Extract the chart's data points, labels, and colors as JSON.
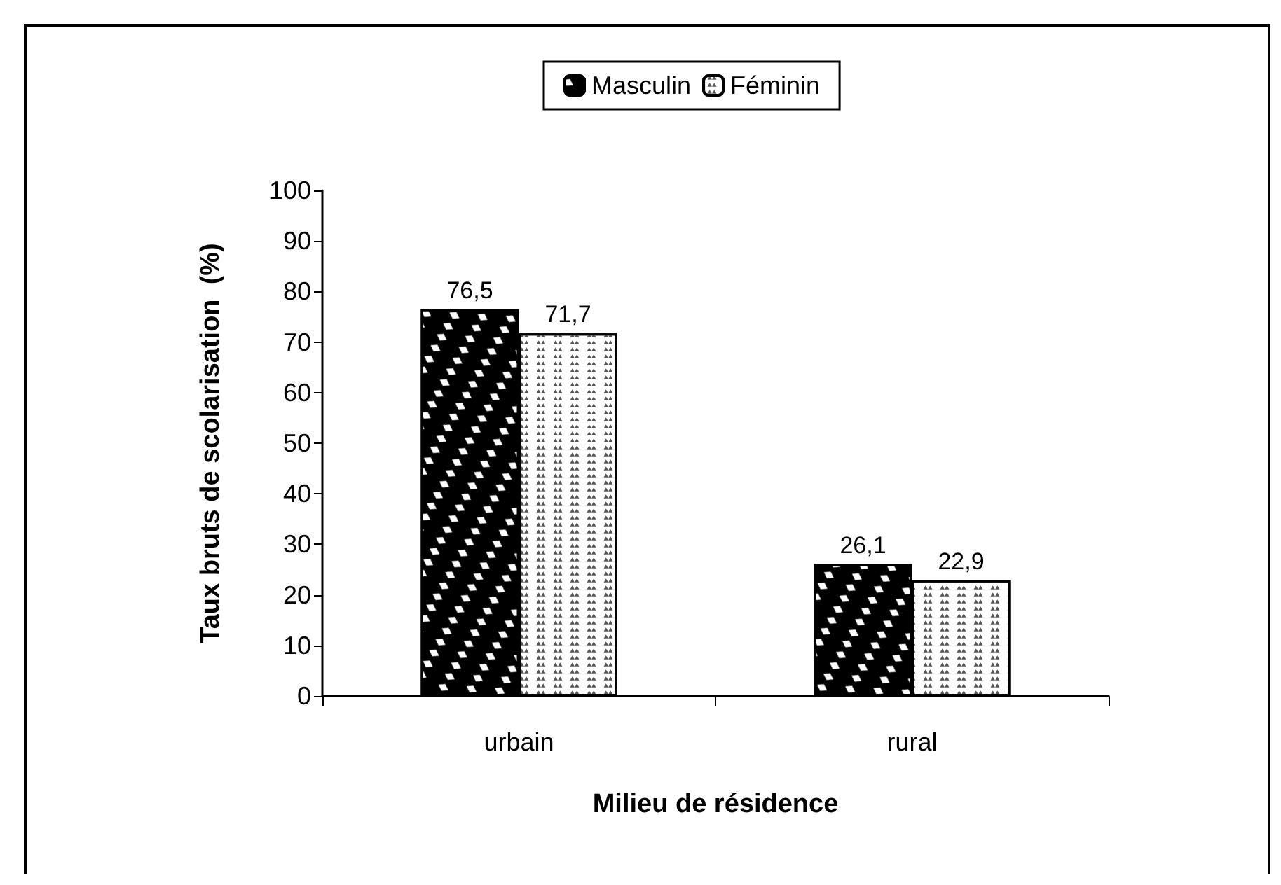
{
  "chart_data": {
    "type": "bar",
    "xlabel": "Milieu de résidence",
    "ylabel": "Taux bruts de scolarisation  (%)",
    "categories": [
      "urbain",
      "rural"
    ],
    "series": [
      {
        "name": "Masculin",
        "color": "#000000",
        "values": [
          76.5,
          26.1
        ],
        "value_labels": [
          "76,5",
          "26,1"
        ]
      },
      {
        "name": "Féminin",
        "color": "#ffffff",
        "values": [
          71.7,
          22.9
        ],
        "value_labels": [
          "71,7",
          "22,9"
        ]
      }
    ],
    "ylim": [
      0,
      100
    ],
    "yticks": [
      0,
      10,
      20,
      30,
      40,
      50,
      60,
      70,
      80,
      90,
      100
    ],
    "grid": false,
    "legend": "top"
  }
}
